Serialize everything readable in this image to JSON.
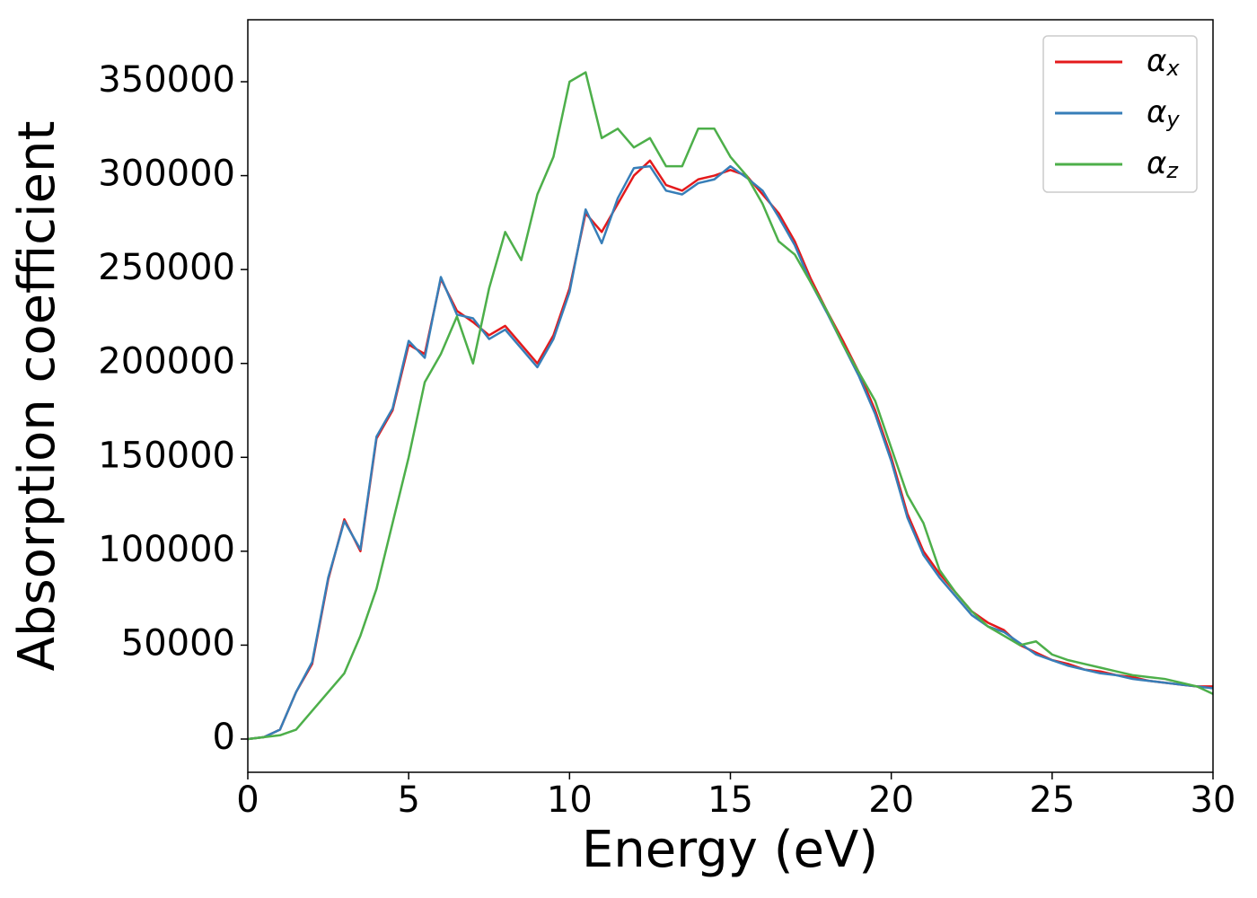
{
  "chart_data": {
    "type": "line",
    "xlabel": "Energy (eV)",
    "ylabel": "Absorption coefficient",
    "x": [
      0,
      0.5,
      1,
      1.5,
      2,
      2.5,
      3,
      3.5,
      4,
      4.5,
      5,
      5.5,
      6,
      6.5,
      7,
      7.5,
      8,
      8.5,
      9,
      9.5,
      10,
      10.5,
      11,
      11.5,
      12,
      12.5,
      13,
      13.5,
      14,
      14.5,
      15,
      15.5,
      16,
      16.5,
      17,
      17.5,
      18,
      18.5,
      19,
      19.5,
      20,
      20.5,
      21,
      21.5,
      22,
      22.5,
      23,
      23.5,
      24,
      24.5,
      25,
      25.5,
      26,
      26.5,
      27,
      27.5,
      28,
      28.5,
      29,
      29.5,
      30
    ],
    "series": [
      {
        "name": "αx",
        "color": "#e41a1c",
        "values": [
          0,
          1000,
          5000,
          25000,
          40000,
          85000,
          117000,
          100000,
          160000,
          175000,
          210000,
          205000,
          245000,
          228000,
          222000,
          215000,
          220000,
          210000,
          200000,
          215000,
          240000,
          280000,
          270000,
          285000,
          300000,
          308000,
          295000,
          292000,
          298000,
          300000,
          303000,
          300000,
          290000,
          280000,
          265000,
          245000,
          228000,
          212000,
          195000,
          175000,
          150000,
          120000,
          100000,
          88000,
          78000,
          68000,
          62000,
          58000,
          50000,
          46000,
          42000,
          40000,
          37000,
          36000,
          34000,
          33000,
          31000,
          30000,
          29000,
          28000,
          28000
        ]
      },
      {
        "name": "αy",
        "color": "#377eb8",
        "values": [
          0,
          1000,
          5000,
          25000,
          41000,
          86000,
          116000,
          101000,
          161000,
          176000,
          212000,
          203000,
          246000,
          226000,
          224000,
          213000,
          218000,
          208000,
          198000,
          213000,
          238000,
          282000,
          264000,
          288000,
          304000,
          305000,
          292000,
          290000,
          296000,
          298000,
          305000,
          299000,
          292000,
          278000,
          263000,
          243000,
          227000,
          210000,
          193000,
          173000,
          148000,
          118000,
          98000,
          86000,
          76000,
          66000,
          60000,
          57000,
          51000,
          45000,
          42000,
          39000,
          37000,
          35000,
          34000,
          32000,
          31000,
          30000,
          29000,
          28000,
          27000
        ]
      },
      {
        "name": "αz",
        "color": "#4daf4a",
        "values": [
          0,
          1000,
          2000,
          5000,
          15000,
          25000,
          35000,
          55000,
          80000,
          115000,
          150000,
          190000,
          205000,
          225000,
          200000,
          240000,
          270000,
          255000,
          290000,
          310000,
          350000,
          355000,
          320000,
          325000,
          315000,
          320000,
          305000,
          305000,
          325000,
          325000,
          310000,
          300000,
          285000,
          265000,
          258000,
          243000,
          228000,
          210000,
          195000,
          180000,
          155000,
          130000,
          115000,
          90000,
          78000,
          68000,
          60000,
          55000,
          50000,
          52000,
          45000,
          42000,
          40000,
          38000,
          36000,
          34000,
          33000,
          32000,
          30000,
          28000,
          24000
        ]
      }
    ],
    "xlim": [
      0,
      30
    ],
    "xticks": [
      0,
      5,
      10,
      15,
      20,
      25,
      30
    ],
    "ylim": [
      -17700,
      383000
    ],
    "yticks": [
      0,
      50000,
      100000,
      150000,
      200000,
      250000,
      300000,
      350000
    ],
    "legend": "upper right",
    "grid": false
  }
}
